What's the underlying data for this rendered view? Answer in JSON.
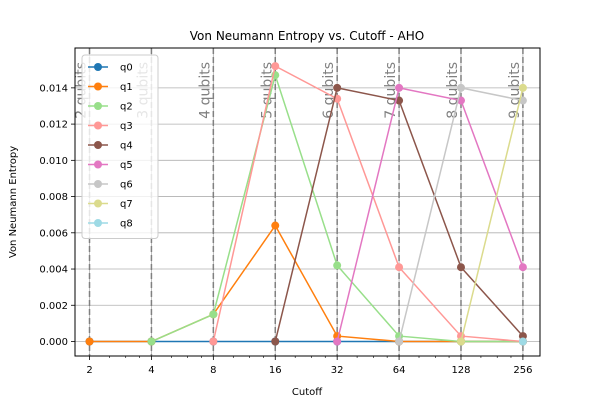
{
  "chart_data": {
    "type": "line",
    "title": "Von Neumann Entropy vs. Cutoff - AHO",
    "xlabel": "Cutoff",
    "ylabel": "Von Neumann Entropy",
    "x_scale": "log2",
    "x": [
      2,
      4,
      8,
      16,
      32,
      64,
      128,
      256
    ],
    "x_tick_labels": [
      "2",
      "4",
      "8",
      "16",
      "32",
      "64",
      "128",
      "256"
    ],
    "xlim": [
      1.7,
      310
    ],
    "ylim": [
      -0.0008,
      0.0162
    ],
    "y_ticks": [
      0.0,
      0.002,
      0.004,
      0.006,
      0.008,
      0.01,
      0.012,
      0.014
    ],
    "y_tick_labels": [
      "0.000",
      "0.002",
      "0.004",
      "0.006",
      "0.008",
      "0.010",
      "0.012",
      "0.014"
    ],
    "grid": true,
    "legend_position": "top-left",
    "series": [
      {
        "name": "q0",
        "color": "#1f77b4",
        "x": [
          2,
          4,
          8,
          16,
          32,
          64,
          128,
          256
        ],
        "values": [
          0,
          0,
          0,
          0,
          0,
          0,
          0,
          0
        ]
      },
      {
        "name": "q1",
        "color": "#ff7f0e",
        "x": [
          2,
          4,
          8,
          16,
          32,
          64,
          128,
          256
        ],
        "values": [
          0,
          0,
          0.0015,
          0.0064,
          0.0003,
          0.0,
          0.0,
          0.0
        ]
      },
      {
        "name": "q2",
        "color": "#98df8a",
        "x": [
          4,
          8,
          16,
          32,
          64,
          128,
          256
        ],
        "values": [
          0,
          0.0015,
          0.0147,
          0.0042,
          0.0003,
          0.0,
          0.0
        ]
      },
      {
        "name": "q3",
        "color": "#ff9896",
        "x": [
          8,
          16,
          32,
          64,
          128,
          256
        ],
        "values": [
          0,
          0.0152,
          0.0134,
          0.0041,
          0.0003,
          0.0
        ]
      },
      {
        "name": "q4",
        "color": "#8c564b",
        "x": [
          16,
          32,
          64,
          128,
          256
        ],
        "values": [
          0,
          0.014,
          0.0133,
          0.0041,
          0.0003
        ]
      },
      {
        "name": "q5",
        "color": "#e377c2",
        "x": [
          32,
          64,
          128,
          256
        ],
        "values": [
          0,
          0.014,
          0.0133,
          0.0041
        ]
      },
      {
        "name": "q6",
        "color": "#c7c7c7",
        "x": [
          64,
          128,
          256
        ],
        "values": [
          0,
          0.014,
          0.0133
        ]
      },
      {
        "name": "q7",
        "color": "#dbdb8d",
        "x": [
          128,
          256
        ],
        "values": [
          0,
          0.014
        ]
      },
      {
        "name": "q8",
        "color": "#9edae5",
        "x": [
          256
        ],
        "values": [
          0
        ]
      }
    ],
    "annotations": [
      {
        "x": 2,
        "text": "2 qubits"
      },
      {
        "x": 4,
        "text": "3 qubits"
      },
      {
        "x": 8,
        "text": "4 qubits"
      },
      {
        "x": 16,
        "text": "5 qubits"
      },
      {
        "x": 32,
        "text": "6 qubits"
      },
      {
        "x": 64,
        "text": "7 qubits"
      },
      {
        "x": 128,
        "text": "8 qubits"
      },
      {
        "x": 256,
        "text": "9 qubits"
      }
    ]
  }
}
